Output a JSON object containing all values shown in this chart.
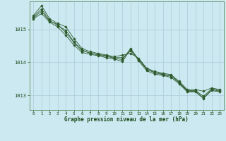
{
  "title": "Graphe pression niveau de la mer (hPa)",
  "bg_color": "#cce8f0",
  "grid_color": "#aaccd8",
  "line_color": "#2d5a2d",
  "xlim": [
    -0.5,
    23.5
  ],
  "ylim": [
    1012.55,
    1015.85
  ],
  "yticks": [
    1013,
    1014,
    1015
  ],
  "xticks": [
    0,
    1,
    2,
    3,
    4,
    5,
    6,
    7,
    8,
    9,
    10,
    11,
    12,
    13,
    14,
    15,
    16,
    17,
    18,
    19,
    20,
    21,
    22,
    23
  ],
  "series": [
    [
      1015.35,
      1015.55,
      1015.25,
      1015.15,
      1014.9,
      1014.6,
      1014.35,
      1014.28,
      1014.22,
      1014.18,
      1014.12,
      1014.08,
      1014.42,
      1014.08,
      1013.78,
      1013.68,
      1013.62,
      1013.58,
      1013.38,
      1013.12,
      1013.12,
      1012.92,
      1013.17,
      1013.12
    ],
    [
      1015.42,
      1015.72,
      1015.32,
      1015.18,
      1015.08,
      1014.72,
      1014.42,
      1014.32,
      1014.27,
      1014.22,
      1014.17,
      1014.22,
      1014.27,
      1014.12,
      1013.82,
      1013.72,
      1013.67,
      1013.62,
      1013.42,
      1013.17,
      1013.17,
      1013.12,
      1013.22,
      1013.17
    ],
    [
      1015.38,
      1015.62,
      1015.27,
      1015.12,
      1014.97,
      1014.62,
      1014.38,
      1014.27,
      1014.24,
      1014.2,
      1014.14,
      1014.14,
      1014.34,
      1014.1,
      1013.79,
      1013.69,
      1013.64,
      1013.59,
      1013.39,
      1013.14,
      1013.14,
      1012.97,
      1013.19,
      1013.14
    ],
    [
      1015.32,
      1015.48,
      1015.22,
      1015.07,
      1014.82,
      1014.52,
      1014.3,
      1014.24,
      1014.2,
      1014.14,
      1014.1,
      1014.02,
      1014.4,
      1014.04,
      1013.74,
      1013.64,
      1013.6,
      1013.54,
      1013.34,
      1013.1,
      1013.1,
      1012.9,
      1013.14,
      1013.1
    ]
  ]
}
